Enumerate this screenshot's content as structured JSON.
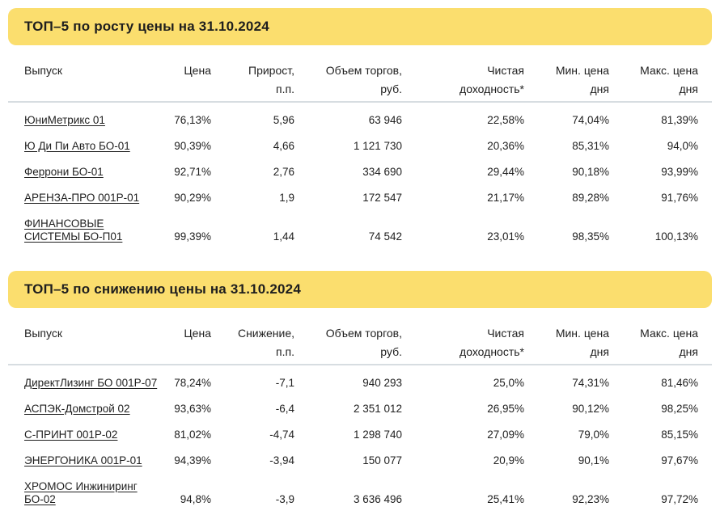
{
  "colors": {
    "banner_yellow": "#fbde6e",
    "separator": "#d7dde1",
    "text": "#1f1f1f"
  },
  "tables": [
    {
      "title": "ТОП–5 по росту цены на 31.10.2024",
      "columns": [
        "Выпуск",
        "Цена",
        "Прирост,\nп.п.",
        "Объем торгов,\nруб.",
        "Чистая\nдоходность*",
        "Мин. цена\nдня",
        "Макс. цена\nдня"
      ],
      "rows": [
        [
          "ЮниМетрикс 01",
          "76,13%",
          "5,96",
          "63 946",
          "22,58%",
          "74,04%",
          "81,39%"
        ],
        [
          "Ю Ди Пи Авто БО-01",
          "90,39%",
          "4,66",
          "1 121 730",
          "20,36%",
          "85,31%",
          "94,0%"
        ],
        [
          "Феррони БО-01",
          "92,71%",
          "2,76",
          "334 690",
          "29,44%",
          "90,18%",
          "93,99%"
        ],
        [
          "АРЕНЗА-ПРО 001Р-01",
          "90,29%",
          "1,9",
          "172 547",
          "21,17%",
          "89,28%",
          "91,76%"
        ],
        [
          "ФИНАНСОВЫЕ СИСТЕМЫ БО-П01",
          "99,39%",
          "1,44",
          "74 542",
          "23,01%",
          "98,35%",
          "100,13%"
        ]
      ]
    },
    {
      "title": "ТОП–5 по снижению цены на 31.10.2024",
      "columns": [
        "Выпуск",
        "Цена",
        "Снижение,\nп.п.",
        "Объем торгов,\nруб.",
        "Чистая\nдоходность*",
        "Мин. цена\nдня",
        "Макс. цена\nдня"
      ],
      "rows": [
        [
          "ДиректЛизинг БО 001Р-07",
          "78,24%",
          "-7,1",
          "940 293",
          "25,0%",
          "74,31%",
          "81,46%"
        ],
        [
          "АСПЭК-Домстрой 02",
          "93,63%",
          "-6,4",
          "2 351 012",
          "26,95%",
          "90,12%",
          "98,25%"
        ],
        [
          "С-ПРИНТ 001Р-02",
          "81,02%",
          "-4,74",
          "1 298 740",
          "27,09%",
          "79,0%",
          "85,15%"
        ],
        [
          "ЭНЕРГОНИКА 001Р-01",
          "94,39%",
          "-3,94",
          "150 077",
          "20,9%",
          "90,1%",
          "97,67%"
        ],
        [
          "ХРОМОС Инжиниринг БО-02",
          "94,8%",
          "-3,9",
          "3 636 496",
          "25,41%",
          "92,23%",
          "97,72%"
        ]
      ]
    }
  ]
}
